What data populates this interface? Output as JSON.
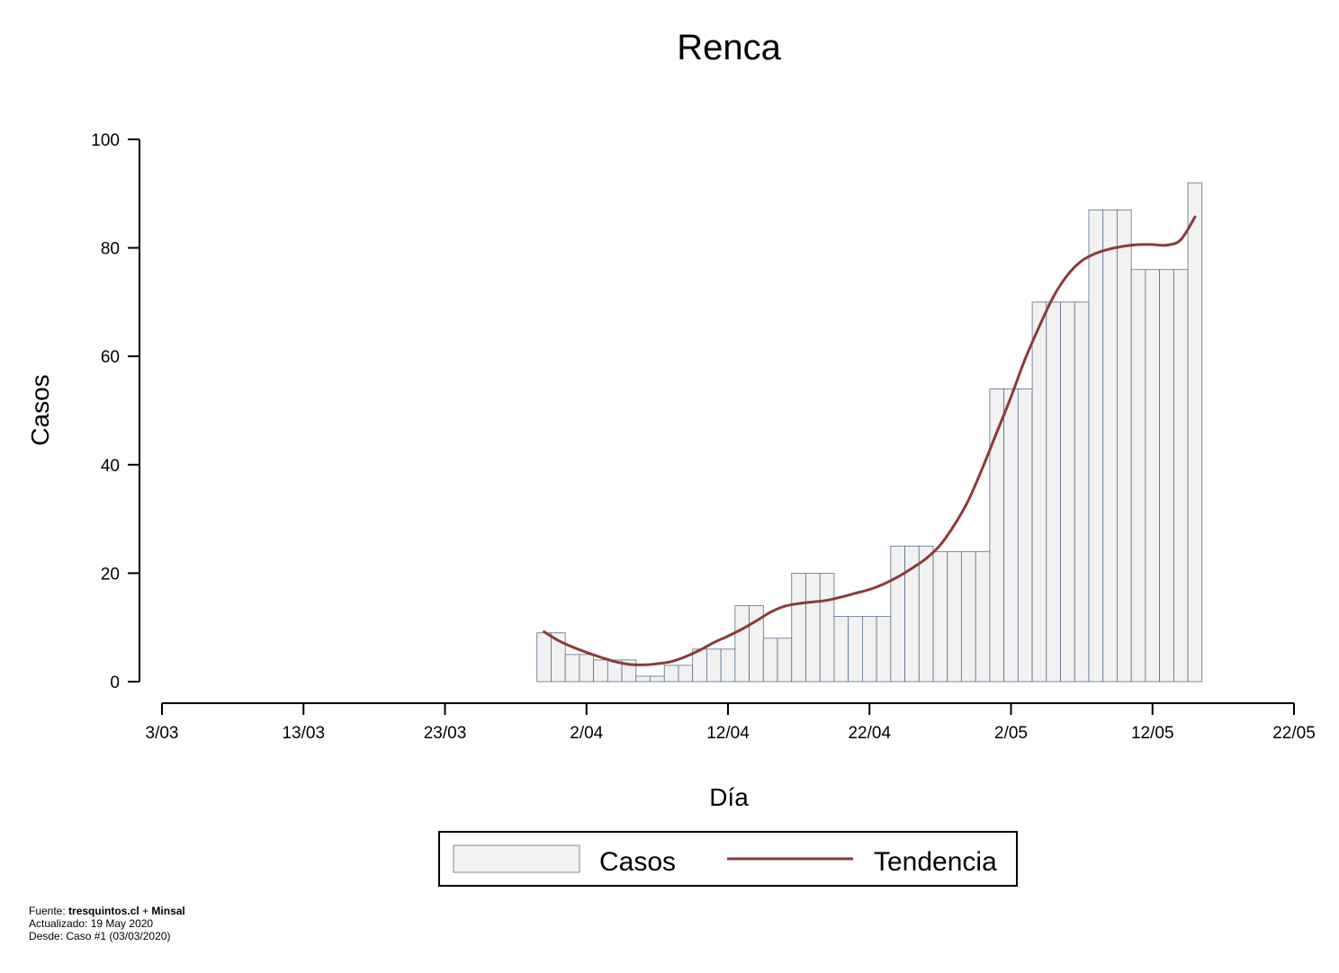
{
  "chart_data": {
    "type": "bar",
    "title": "Renca",
    "xlabel": "Día",
    "ylabel": "Casos",
    "ylim": [
      0,
      100
    ],
    "yticks": [
      0,
      20,
      40,
      60,
      80,
      100
    ],
    "xlim": [
      0,
      80
    ],
    "xtick_days": [
      0,
      10,
      20,
      30,
      40,
      50,
      60,
      70,
      80
    ],
    "xtick_labels": [
      "3/03",
      "13/03",
      "23/03",
      "2/04",
      "12/04",
      "22/04",
      "2/05",
      "12/05",
      "22/05"
    ],
    "grid": false,
    "legend_position": "bottom",
    "series": [
      {
        "name": "Casos",
        "kind": "bar",
        "fill": "#f2f2f2",
        "stroke": "#5a6e8f",
        "x": [
          "2020-03-30",
          "2020-03-31",
          "2020-04-01",
          "2020-04-02",
          "2020-04-03",
          "2020-04-04",
          "2020-04-05",
          "2020-04-06",
          "2020-04-07",
          "2020-04-08",
          "2020-04-09",
          "2020-04-10",
          "2020-04-11",
          "2020-04-12",
          "2020-04-13",
          "2020-04-14",
          "2020-04-15",
          "2020-04-16",
          "2020-04-17",
          "2020-04-18",
          "2020-04-19",
          "2020-04-20",
          "2020-04-21",
          "2020-04-22",
          "2020-04-23",
          "2020-04-24",
          "2020-04-25",
          "2020-04-26",
          "2020-04-27",
          "2020-04-28",
          "2020-04-29",
          "2020-04-30",
          "2020-05-01",
          "2020-05-02",
          "2020-05-03",
          "2020-05-04",
          "2020-05-05",
          "2020-05-06",
          "2020-05-07",
          "2020-05-08",
          "2020-05-09",
          "2020-05-10",
          "2020-05-11",
          "2020-05-12",
          "2020-05-13",
          "2020-05-14",
          "2020-05-15"
        ],
        "values": [
          9,
          9,
          5,
          5,
          4,
          4,
          4,
          1,
          1,
          3,
          3,
          6,
          6,
          6,
          14,
          14,
          8,
          8,
          20,
          20,
          20,
          12,
          12,
          12,
          12,
          25,
          25,
          25,
          24,
          24,
          24,
          24,
          54,
          54,
          54,
          70,
          70,
          70,
          70,
          87,
          87,
          87,
          76,
          76,
          76,
          76,
          92
        ]
      },
      {
        "name": "Tendencia",
        "kind": "line",
        "color": "#8b3a3a",
        "x": [
          "2020-03-30",
          "2020-03-31",
          "2020-04-01",
          "2020-04-02",
          "2020-04-03",
          "2020-04-04",
          "2020-04-05",
          "2020-04-06",
          "2020-04-07",
          "2020-04-08",
          "2020-04-09",
          "2020-04-10",
          "2020-04-11",
          "2020-04-12",
          "2020-04-13",
          "2020-04-14",
          "2020-04-15",
          "2020-04-16",
          "2020-04-17",
          "2020-04-18",
          "2020-04-19",
          "2020-04-20",
          "2020-04-21",
          "2020-04-22",
          "2020-04-23",
          "2020-04-24",
          "2020-04-25",
          "2020-04-26",
          "2020-04-27",
          "2020-04-28",
          "2020-04-29",
          "2020-04-30",
          "2020-05-01",
          "2020-05-02",
          "2020-05-03",
          "2020-05-04",
          "2020-05-05",
          "2020-05-06",
          "2020-05-07",
          "2020-05-08",
          "2020-05-09",
          "2020-05-10",
          "2020-05-11",
          "2020-05-12",
          "2020-05-13",
          "2020-05-14",
          "2020-05-15"
        ],
        "values": [
          9.2,
          7.6,
          6.4,
          5.4,
          4.5,
          3.7,
          3.2,
          3.1,
          3.3,
          3.7,
          4.6,
          5.8,
          7.2,
          8.4,
          9.7,
          11.2,
          12.8,
          13.9,
          14.4,
          14.7,
          15.0,
          15.6,
          16.3,
          17.0,
          18.0,
          19.3,
          20.9,
          22.7,
          25.2,
          28.9,
          33.5,
          39.5,
          46.0,
          52.5,
          59.5,
          65.5,
          71.0,
          75.0,
          77.6,
          79.0,
          79.8,
          80.3,
          80.6,
          80.6,
          80.5,
          81.5,
          85.7
        ]
      }
    ]
  },
  "legend": {
    "casos_label": "Casos",
    "tendencia_label": "Tendencia"
  },
  "footer": {
    "fuente_prefix": "Fuente: ",
    "fuente_site": "tresquintos.cl",
    "fuente_sep": " + ",
    "fuente_org": "Minsal",
    "actualizado": "Actualizado: 19 May 2020",
    "desde": "Desde: Caso #1  (03/03/2020)"
  }
}
